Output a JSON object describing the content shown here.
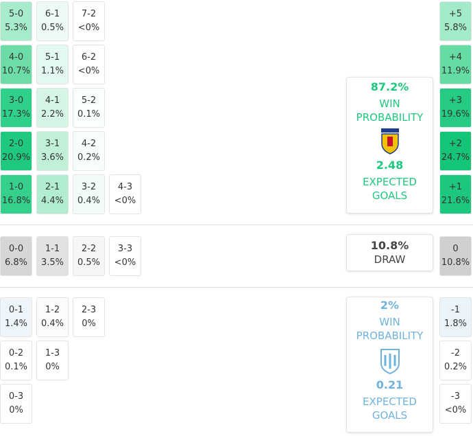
{
  "home": {
    "rows": [
      [
        {
          "score": "5-0",
          "pct": "5.3%",
          "color": "#a6ebcc"
        },
        {
          "score": "6-1",
          "pct": "0.5%",
          "color": "#eefbf4"
        },
        {
          "score": "7-2",
          "pct": "<0%",
          "color": "#ffffff"
        }
      ],
      [
        {
          "score": "4-0",
          "pct": "10.7%",
          "color": "#6ddda8"
        },
        {
          "score": "5-1",
          "pct": "1.1%",
          "color": "#e3f8ee"
        },
        {
          "score": "6-2",
          "pct": "<0%",
          "color": "#ffffff"
        }
      ],
      [
        {
          "score": "3-0",
          "pct": "17.3%",
          "color": "#2fd08a"
        },
        {
          "score": "4-1",
          "pct": "2.2%",
          "color": "#d5f5e5"
        },
        {
          "score": "5-2",
          "pct": "0.1%",
          "color": "#fafefc"
        }
      ],
      [
        {
          "score": "2-0",
          "pct": "20.9%",
          "color": "#1ec87e"
        },
        {
          "score": "3-1",
          "pct": "3.6%",
          "color": "#c0f0d8"
        },
        {
          "score": "4-2",
          "pct": "0.2%",
          "color": "#f7fdfa"
        }
      ],
      [
        {
          "score": "1-0",
          "pct": "16.8%",
          "color": "#34d08c"
        },
        {
          "score": "2-1",
          "pct": "4.4%",
          "color": "#b3edd1"
        },
        {
          "score": "3-2",
          "pct": "0.4%",
          "color": "#f2fcf6"
        },
        {
          "score": "4-3",
          "pct": "<0%",
          "color": "#ffffff"
        }
      ]
    ],
    "margins": [
      {
        "score": "+5",
        "pct": "5.8%",
        "color": "#a3eac9"
      },
      {
        "score": "+4",
        "pct": "11.9%",
        "color": "#66dca5"
      },
      {
        "score": "+3",
        "pct": "19.6%",
        "color": "#25cb82"
      },
      {
        "score": "+2",
        "pct": "24.7%",
        "color": "#14c477"
      },
      {
        "score": "+1",
        "pct": "21.6%",
        "color": "#1dc77d"
      }
    ],
    "panel": {
      "win": "87.2%",
      "win_label": "WIN PROBABILITY",
      "xg": "2.48",
      "xg_label": "EXPECTED GOALS",
      "color": "#1ec87e"
    }
  },
  "draw": {
    "rows": [
      [
        {
          "score": "0-0",
          "pct": "6.8%",
          "color": "#d6d6d6"
        },
        {
          "score": "1-1",
          "pct": "3.5%",
          "color": "#e2e2e2"
        },
        {
          "score": "2-2",
          "pct": "0.5%",
          "color": "#f6f6f6"
        },
        {
          "score": "3-3",
          "pct": "<0%",
          "color": "#ffffff"
        }
      ]
    ],
    "margins": [
      {
        "score": "0",
        "pct": "10.8%",
        "color": "#d0d0d0"
      }
    ],
    "panel": {
      "value": "10.8%",
      "label": "DRAW"
    }
  },
  "away": {
    "rows": [
      [
        {
          "score": "0-1",
          "pct": "1.4%",
          "color": "#eef5fb"
        },
        {
          "score": "1-2",
          "pct": "0.4%",
          "color": "#fafcfe"
        },
        {
          "score": "2-3",
          "pct": "0%",
          "color": "#ffffff"
        }
      ],
      [
        {
          "score": "0-2",
          "pct": "0.1%",
          "color": "#ffffff"
        },
        {
          "score": "1-3",
          "pct": "0%",
          "color": "#ffffff"
        }
      ],
      [
        {
          "score": "0-3",
          "pct": "0%",
          "color": "#ffffff"
        }
      ]
    ],
    "margins": [
      {
        "score": "-1",
        "pct": "1.8%",
        "color": "#eaf3fa"
      },
      {
        "score": "-2",
        "pct": "0.2%",
        "color": "#ffffff"
      },
      {
        "score": "-3",
        "pct": "<0%",
        "color": "#ffffff"
      }
    ],
    "panel": {
      "win": "2%",
      "win_label": "WIN PROBABILITY",
      "xg": "0.21",
      "xg_label": "EXPECTED GOALS",
      "color": "#6fb3dd"
    }
  }
}
